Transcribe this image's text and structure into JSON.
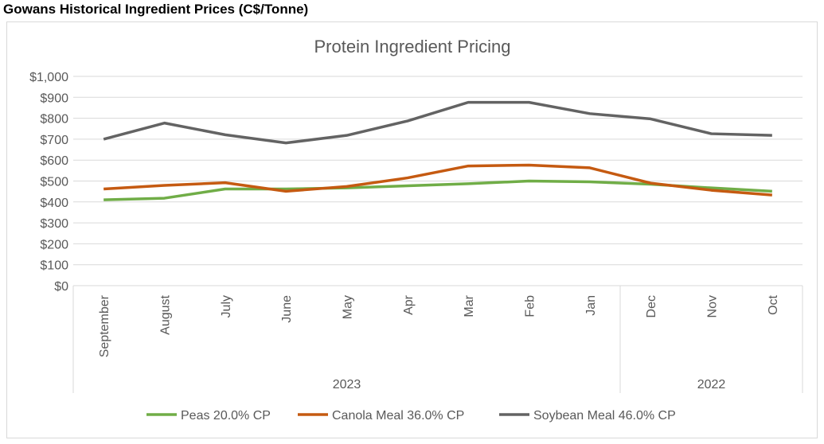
{
  "page_title": "Gowans Historical Ingredient Prices (C$/Tonne)",
  "chart_data": {
    "type": "line",
    "title": "Protein Ingredient Pricing",
    "xlabel": "",
    "ylabel": "",
    "ylim": [
      0,
      1000
    ],
    "yticks": [
      0,
      100,
      200,
      300,
      400,
      500,
      600,
      700,
      800,
      900,
      1000
    ],
    "ytick_labels": [
      "$0",
      "$100",
      "$200",
      "$300",
      "$400",
      "$500",
      "$600",
      "$700",
      "$800",
      "$900",
      "$1,000"
    ],
    "categories": [
      "September",
      "August",
      "July",
      "June",
      "May",
      "Apr",
      "Mar",
      "Feb",
      "Jan",
      "Dec",
      "Nov",
      "Oct"
    ],
    "year_groups": [
      {
        "label": "2023",
        "count": 9
      },
      {
        "label": "2022",
        "count": 3
      }
    ],
    "grid": true,
    "legend": "bottom",
    "series": [
      {
        "name": "Peas 20.0% CP",
        "color": "#70ad47",
        "values": [
          410,
          418,
          462,
          462,
          467,
          477,
          487,
          500,
          496,
          485,
          467,
          451
        ]
      },
      {
        "name": "Canola Meal 36.0% CP",
        "color": "#c55a11",
        "values": [
          462,
          479,
          492,
          451,
          474,
          515,
          572,
          576,
          563,
          490,
          456,
          433
        ]
      },
      {
        "name": "Soybean Meal 46.0% CP",
        "color": "#636363",
        "values": [
          700,
          777,
          721,
          682,
          718,
          787,
          876,
          876,
          822,
          797,
          726,
          718
        ]
      }
    ]
  }
}
